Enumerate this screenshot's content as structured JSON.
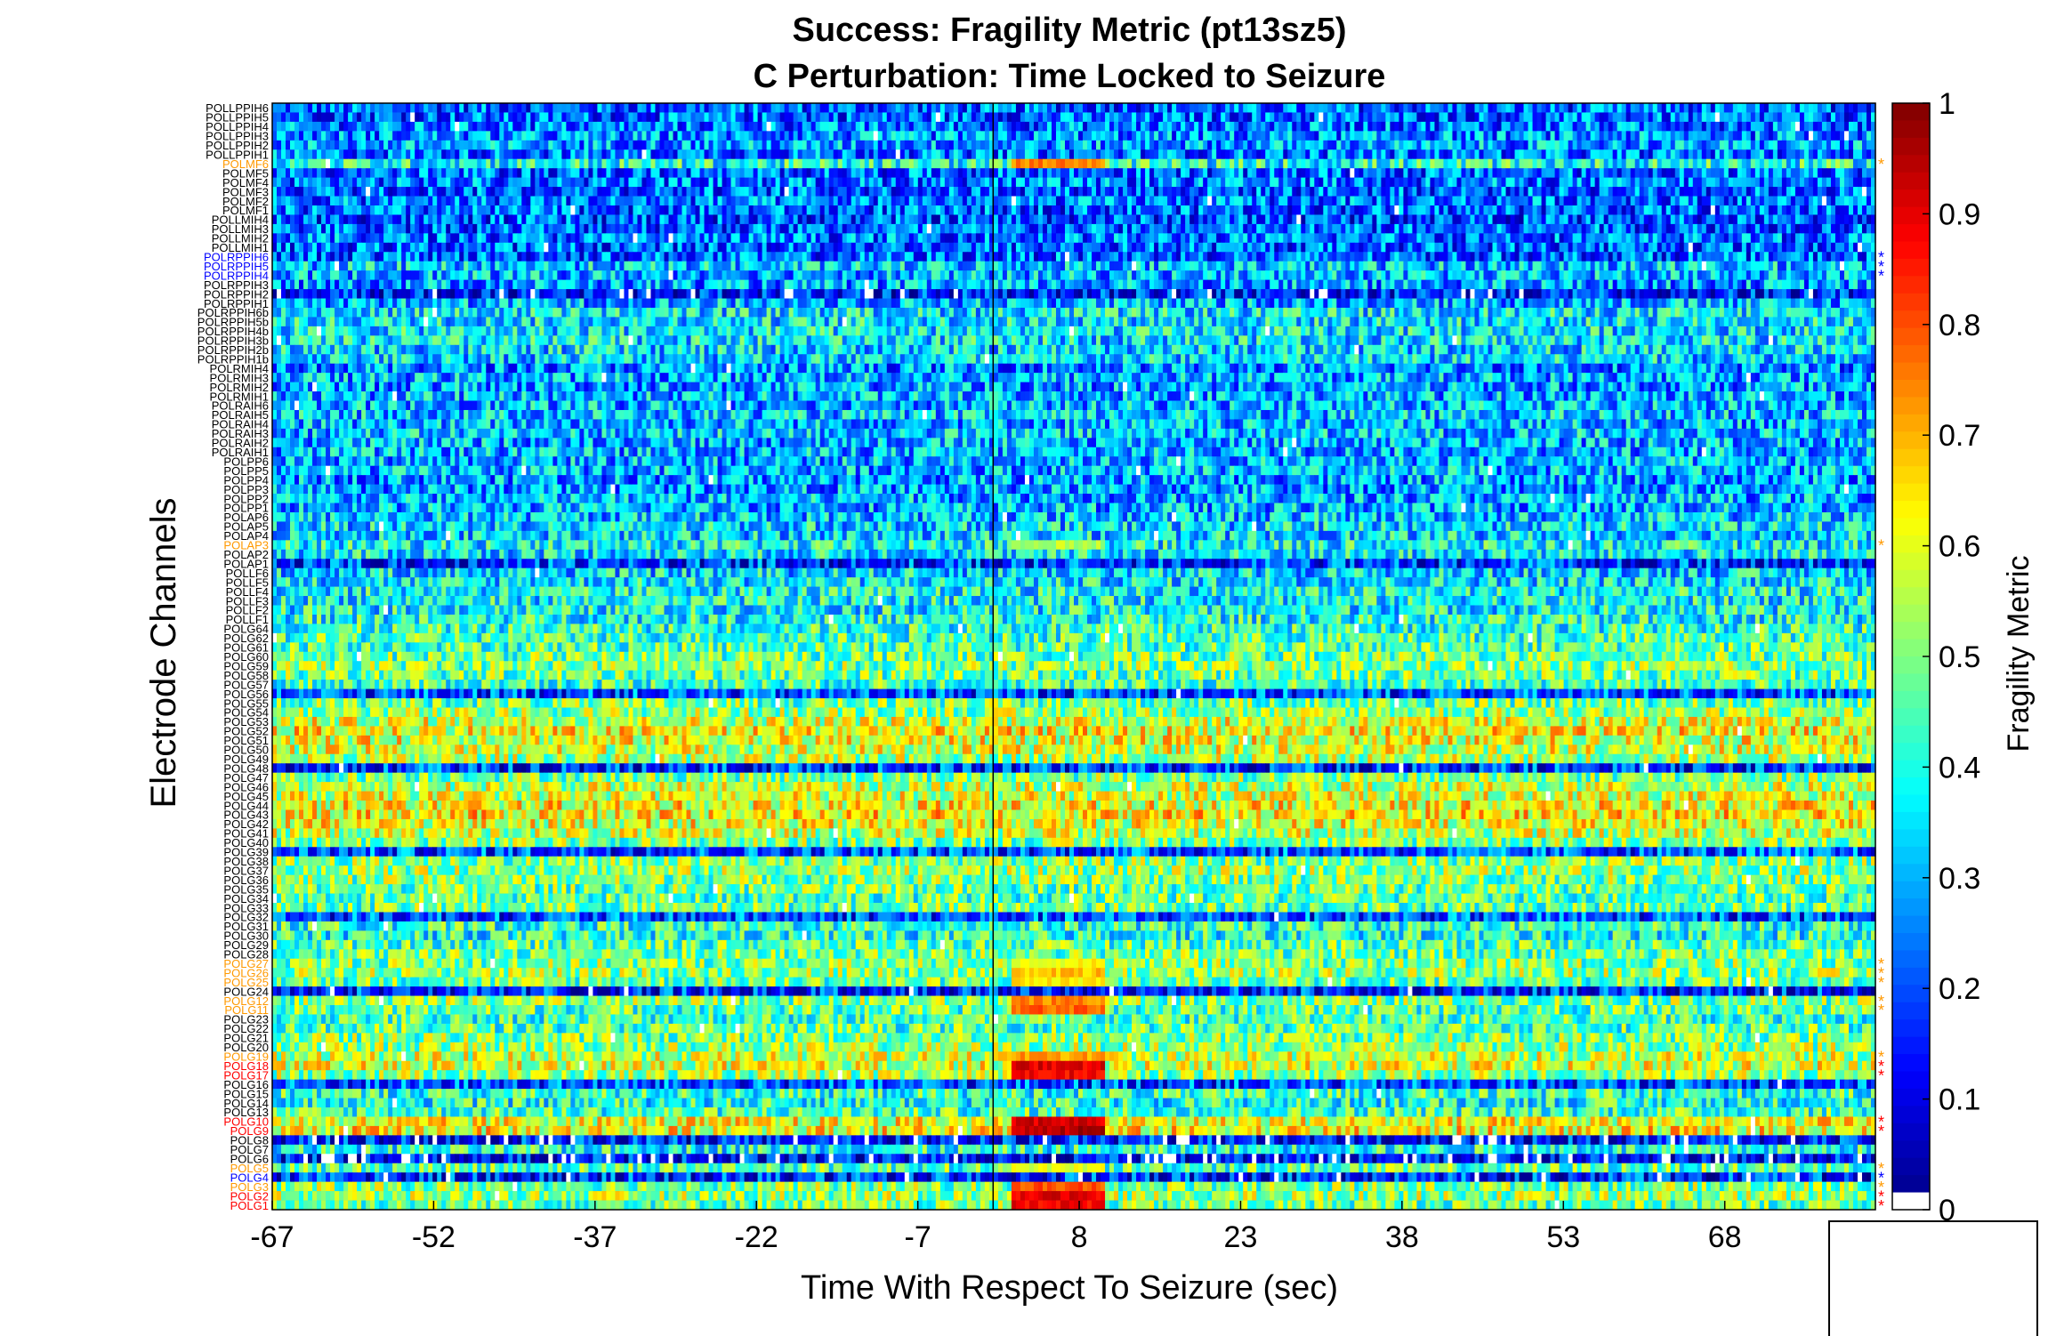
{
  "chart_data": {
    "type": "heatmap",
    "title": "Success: Fragility Metric (pt13sz5)",
    "subtitle": "C Perturbation:  Time Locked to Seizure",
    "xlabel": "Time With Respect To Seizure (sec)",
    "ylabel": "Electrode Channels",
    "x_ticks": [
      "-67",
      "-52",
      "-37",
      "-22",
      "-7",
      "8",
      "23",
      "38",
      "53",
      "68"
    ],
    "xlim": [
      -67,
      82
    ],
    "seizure_onset_sec": 0,
    "colorbar": {
      "label": "Fragility Metric",
      "range": [
        0,
        1
      ],
      "ticks": [
        "0",
        "0.1",
        "0.2",
        "0.3",
        "0.4",
        "0.5",
        "0.6",
        "0.7",
        "0.8",
        "0.9",
        "1"
      ],
      "colormap": "jet"
    },
    "channel_groups": {
      "blue": "#0000ff",
      "orange": "#ff9900",
      "red": "#ff0000",
      "black": "#000000"
    },
    "channels": [
      {
        "name": "POLLPPIH6",
        "group": "black",
        "base": 0.22
      },
      {
        "name": "POLLPPIH5",
        "group": "black",
        "base": 0.22
      },
      {
        "name": "POLLPPIH4",
        "group": "black",
        "base": 0.24
      },
      {
        "name": "POLLPPIH3",
        "group": "black",
        "base": 0.26
      },
      {
        "name": "POLLPPIH2",
        "group": "black",
        "base": 0.28
      },
      {
        "name": "POLLPPIH1",
        "group": "black",
        "base": 0.24
      },
      {
        "name": "POLMF6",
        "group": "orange",
        "base": 0.4,
        "pre": 0.75
      },
      {
        "name": "POLMF5",
        "group": "black",
        "base": 0.22
      },
      {
        "name": "POLMF4",
        "group": "black",
        "base": 0.24
      },
      {
        "name": "POLMF3",
        "group": "black",
        "base": 0.22
      },
      {
        "name": "POLMF2",
        "group": "black",
        "base": 0.24
      },
      {
        "name": "POLMF1",
        "group": "black",
        "base": 0.22
      },
      {
        "name": "POLLMIH4",
        "group": "black",
        "base": 0.2
      },
      {
        "name": "POLLMIH3",
        "group": "black",
        "base": 0.22
      },
      {
        "name": "POLLMIH2",
        "group": "black",
        "base": 0.24
      },
      {
        "name": "POLLMIH1",
        "group": "black",
        "base": 0.22
      },
      {
        "name": "POLRPPIH6",
        "group": "blue",
        "base": 0.22
      },
      {
        "name": "POLRPPIH5",
        "group": "blue",
        "base": 0.32
      },
      {
        "name": "POLRPPIH4",
        "group": "blue",
        "base": 0.3
      },
      {
        "name": "POLRPPIH3",
        "group": "black",
        "base": 0.28
      },
      {
        "name": "POLRPPIH2",
        "group": "black",
        "base": 0.14
      },
      {
        "name": "POLRPPIH1",
        "group": "black",
        "base": 0.3
      },
      {
        "name": "POLRPPIH6b",
        "group": "black",
        "base": 0.36
      },
      {
        "name": "POLRPPIH5b",
        "group": "black",
        "base": 0.36
      },
      {
        "name": "POLRPPIH4b",
        "group": "black",
        "base": 0.36
      },
      {
        "name": "POLRPPIH3b",
        "group": "black",
        "base": 0.36
      },
      {
        "name": "POLRPPIH2b",
        "group": "black",
        "base": 0.34
      },
      {
        "name": "POLRPPIH1b",
        "group": "black",
        "base": 0.34
      },
      {
        "name": "POLRMIH4",
        "group": "black",
        "base": 0.26
      },
      {
        "name": "POLRMIH3",
        "group": "black",
        "base": 0.3
      },
      {
        "name": "POLRMIH2",
        "group": "black",
        "base": 0.28
      },
      {
        "name": "POLRMIH1",
        "group": "black",
        "base": 0.3
      },
      {
        "name": "POLRAIH6",
        "group": "black",
        "base": 0.3
      },
      {
        "name": "POLRAIH5",
        "group": "black",
        "base": 0.32
      },
      {
        "name": "POLRAIH4",
        "group": "black",
        "base": 0.3
      },
      {
        "name": "POLRAIH3",
        "group": "black",
        "base": 0.32
      },
      {
        "name": "POLRAIH2",
        "group": "black",
        "base": 0.3
      },
      {
        "name": "POLRAIH1",
        "group": "black",
        "base": 0.3
      },
      {
        "name": "POLPP6",
        "group": "black",
        "base": 0.3
      },
      {
        "name": "POLPP5",
        "group": "black",
        "base": 0.3
      },
      {
        "name": "POLPP4",
        "group": "black",
        "base": 0.28
      },
      {
        "name": "POLPP3",
        "group": "black",
        "base": 0.28
      },
      {
        "name": "POLPP2",
        "group": "black",
        "base": 0.3
      },
      {
        "name": "POLPP1",
        "group": "black",
        "base": 0.3
      },
      {
        "name": "POLAP6",
        "group": "black",
        "base": 0.32
      },
      {
        "name": "POLAP5",
        "group": "black",
        "base": 0.34
      },
      {
        "name": "POLAP4",
        "group": "black",
        "base": 0.34
      },
      {
        "name": "POLAP3",
        "group": "orange",
        "base": 0.38,
        "pre": 0.55
      },
      {
        "name": "POLAP2",
        "group": "black",
        "base": 0.36
      },
      {
        "name": "POLAP1",
        "group": "black",
        "base": 0.18
      },
      {
        "name": "POLLF6",
        "group": "black",
        "base": 0.34
      },
      {
        "name": "POLLF5",
        "group": "black",
        "base": 0.36
      },
      {
        "name": "POLLF4",
        "group": "black",
        "base": 0.38
      },
      {
        "name": "POLLF3",
        "group": "black",
        "base": 0.38
      },
      {
        "name": "POLLF2",
        "group": "black",
        "base": 0.38
      },
      {
        "name": "POLLF1",
        "group": "black",
        "base": 0.4
      },
      {
        "name": "POLG64",
        "group": "black",
        "base": 0.42
      },
      {
        "name": "POLG62",
        "group": "black",
        "base": 0.44
      },
      {
        "name": "POLG61",
        "group": "black",
        "base": 0.46
      },
      {
        "name": "POLG60",
        "group": "black",
        "base": 0.48
      },
      {
        "name": "POLG59",
        "group": "black",
        "base": 0.5
      },
      {
        "name": "POLG58",
        "group": "black",
        "base": 0.48
      },
      {
        "name": "POLG57",
        "group": "black",
        "base": 0.44
      },
      {
        "name": "POLG56",
        "group": "black",
        "base": 0.2
      },
      {
        "name": "POLG55",
        "group": "black",
        "base": 0.48
      },
      {
        "name": "POLG54",
        "group": "black",
        "base": 0.52
      },
      {
        "name": "POLG53",
        "group": "black",
        "base": 0.58
      },
      {
        "name": "POLG52",
        "group": "black",
        "base": 0.62
      },
      {
        "name": "POLG51",
        "group": "black",
        "base": 0.6
      },
      {
        "name": "POLG50",
        "group": "black",
        "base": 0.58
      },
      {
        "name": "POLG49",
        "group": "black",
        "base": 0.54
      },
      {
        "name": "POLG48",
        "group": "black",
        "base": 0.18
      },
      {
        "name": "POLG47",
        "group": "black",
        "base": 0.5
      },
      {
        "name": "POLG46",
        "group": "black",
        "base": 0.56
      },
      {
        "name": "POLG45",
        "group": "black",
        "base": 0.58
      },
      {
        "name": "POLG44",
        "group": "black",
        "base": 0.62
      },
      {
        "name": "POLG43",
        "group": "black",
        "base": 0.64
      },
      {
        "name": "POLG42",
        "group": "black",
        "base": 0.6
      },
      {
        "name": "POLG41",
        "group": "black",
        "base": 0.56
      },
      {
        "name": "POLG40",
        "group": "black",
        "base": 0.5
      },
      {
        "name": "POLG39",
        "group": "black",
        "base": 0.2
      },
      {
        "name": "POLG38",
        "group": "black",
        "base": 0.5
      },
      {
        "name": "POLG37",
        "group": "black",
        "base": 0.52
      },
      {
        "name": "POLG36",
        "group": "black",
        "base": 0.5
      },
      {
        "name": "POLG35",
        "group": "black",
        "base": 0.48
      },
      {
        "name": "POLG34",
        "group": "black",
        "base": 0.46
      },
      {
        "name": "POLG33",
        "group": "black",
        "base": 0.48
      },
      {
        "name": "POLG32",
        "group": "black",
        "base": 0.2
      },
      {
        "name": "POLG31",
        "group": "black",
        "base": 0.42
      },
      {
        "name": "POLG30",
        "group": "black",
        "base": 0.4
      },
      {
        "name": "POLG29",
        "group": "black",
        "base": 0.46
      },
      {
        "name": "POLG28",
        "group": "black",
        "base": 0.48
      },
      {
        "name": "POLG27",
        "group": "orange",
        "base": 0.5,
        "pre": 0.62
      },
      {
        "name": "POLG26",
        "group": "orange",
        "base": 0.52,
        "pre": 0.68
      },
      {
        "name": "POLG25",
        "group": "orange",
        "base": 0.48,
        "pre": 0.64
      },
      {
        "name": "POLG24",
        "group": "black",
        "base": 0.16
      },
      {
        "name": "POLG12",
        "group": "orange",
        "base": 0.5,
        "pre": 0.74
      },
      {
        "name": "POLG11",
        "group": "orange",
        "base": 0.46,
        "pre": 0.78
      },
      {
        "name": "POLG23",
        "group": "black",
        "base": 0.44
      },
      {
        "name": "POLG22",
        "group": "black",
        "base": 0.46
      },
      {
        "name": "POLG21",
        "group": "black",
        "base": 0.5
      },
      {
        "name": "POLG20",
        "group": "black",
        "base": 0.52
      },
      {
        "name": "POLG19",
        "group": "orange",
        "base": 0.56,
        "pre": 0.72
      },
      {
        "name": "POLG18",
        "group": "red",
        "base": 0.58,
        "pre": 0.9
      },
      {
        "name": "POLG17",
        "group": "red",
        "base": 0.52,
        "pre": 0.88
      },
      {
        "name": "POLG16",
        "group": "black",
        "base": 0.2
      },
      {
        "name": "POLG15",
        "group": "black",
        "base": 0.42
      },
      {
        "name": "POLG14",
        "group": "black",
        "base": 0.4
      },
      {
        "name": "POLG13",
        "group": "black",
        "base": 0.44
      },
      {
        "name": "POLG10",
        "group": "red",
        "base": 0.6,
        "pre": 0.92
      },
      {
        "name": "POLG9",
        "group": "red",
        "base": 0.62,
        "pre": 0.95
      },
      {
        "name": "POLG8",
        "group": "black",
        "base": 0.14
      },
      {
        "name": "POLG7",
        "group": "black",
        "base": 0.4
      },
      {
        "name": "POLG6",
        "group": "black",
        "base": 0.12
      },
      {
        "name": "POLG5",
        "group": "orange",
        "base": 0.46,
        "pre": 0.6
      },
      {
        "name": "POLG4",
        "group": "blue",
        "base": 0.16
      },
      {
        "name": "POLG3",
        "group": "orange",
        "base": 0.5,
        "pre": 0.8
      },
      {
        "name": "POLG2",
        "group": "red",
        "base": 0.52,
        "pre": 0.9
      },
      {
        "name": "POLG1",
        "group": "red",
        "base": 0.48,
        "pre": 0.88
      }
    ]
  }
}
